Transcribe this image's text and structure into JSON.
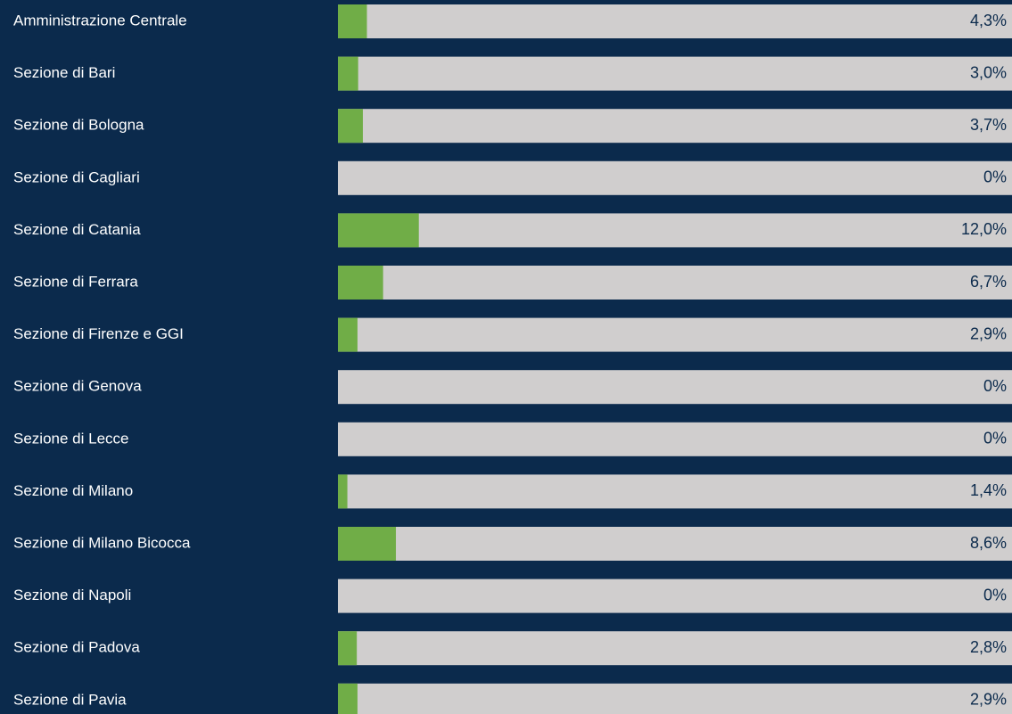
{
  "chart_data": {
    "type": "bar",
    "orientation": "horizontal",
    "categories": [
      "Amministrazione Centrale",
      "Sezione di Bari",
      "Sezione di Bologna",
      "Sezione di Cagliari",
      "Sezione di Catania",
      "Sezione di Ferrara",
      "Sezione di Firenze e GGI",
      "Sezione di Genova",
      "Sezione di Lecce",
      "Sezione di Milano",
      "Sezione di Milano Bicocca",
      "Sezione di Napoli",
      "Sezione di Padova",
      "Sezione di Pavia"
    ],
    "values": [
      4.3,
      3.0,
      3.7,
      0,
      12.0,
      6.7,
      2.9,
      0,
      0,
      1.4,
      8.6,
      0,
      2.8,
      2.9
    ],
    "value_labels": [
      "4,3%",
      "3,0%",
      "3,7%",
      "0%",
      "12,0%",
      "6,7%",
      "2,9%",
      "0%",
      "0%",
      "1,4%",
      "8,6%",
      "0%",
      "2,8%",
      "2,9%"
    ],
    "color": "#70ad47",
    "track_color": "#d0cece",
    "xlim": [
      0,
      100
    ]
  }
}
